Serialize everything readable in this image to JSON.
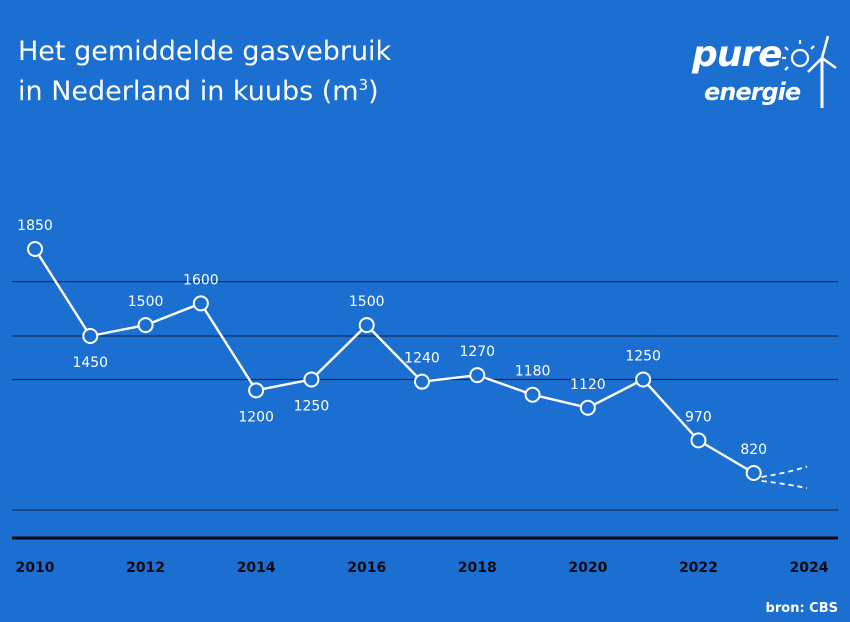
{
  "header": {
    "title_line1": "Het gemiddelde gasvebruik",
    "title_line2": "in Nederland in kuubs (m",
    "title_sup": "3",
    "title_end": ")"
  },
  "logo": {
    "line1": "pure",
    "line2": "energie"
  },
  "footer": {
    "source": "bron: CBS"
  },
  "colors": {
    "background": "#1b6fd0",
    "line": "#ffffff",
    "gridline": "#0d2f5e",
    "axis": "#0a0a14"
  },
  "chart_data": {
    "type": "line",
    "title": "Het gemiddelde gasvebruik in Nederland in kuubs (m3)",
    "xlabel": "",
    "ylabel": "",
    "x": [
      2010,
      2011,
      2012,
      2013,
      2014,
      2015,
      2016,
      2017,
      2018,
      2019,
      2020,
      2021,
      2022,
      2023
    ],
    "values": [
      1850,
      1450,
      1500,
      1600,
      1200,
      1250,
      1500,
      1240,
      1270,
      1180,
      1120,
      1250,
      970,
      820
    ],
    "x_tick_labels": [
      "2010",
      "2012",
      "2014",
      "2016",
      "2018",
      "2020",
      "2022",
      "2024"
    ],
    "xlim": [
      2010,
      2024
    ],
    "gridlines_y": [
      1700,
      1450,
      1250,
      650
    ],
    "projection": {
      "style": "dashed",
      "from_year": 2023,
      "to_year": 2024,
      "upper": 850,
      "lower": 750
    },
    "grid": true,
    "legend": "none"
  }
}
